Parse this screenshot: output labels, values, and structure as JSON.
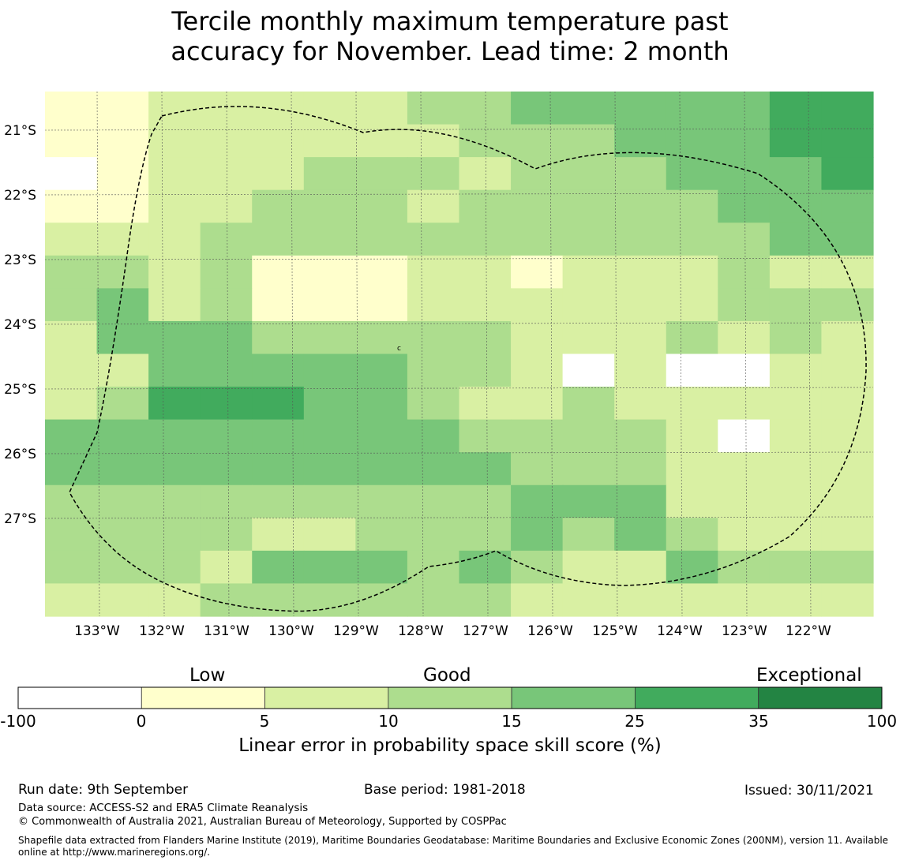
{
  "title": {
    "line1": "Tercile monthly maximum temperature past",
    "line2": "accuracy for November. Lead time: 2 month"
  },
  "map": {
    "lon_labels": [
      "133°W",
      "132°W",
      "131°W",
      "130°W",
      "129°W",
      "128°W",
      "127°W",
      "126°W",
      "125°W",
      "124°W",
      "123°W",
      "122°W"
    ],
    "lat_labels": [
      "21°S",
      "22°S",
      "23°S",
      "24°S",
      "25°S",
      "26°S",
      "27°S"
    ],
    "boundary_style": "dashed black outline (EEZ)",
    "grid_class_values": [
      "0011111223333344",
      "0011111122233344",
      "-011122212223334",
      "0011222122222333",
      "1112222222222233",
      "2212000110111211",
      "2312000111111222",
      "1333222221112121",
      "1133333221-1--11",
      "1244433211211111",
      "3333333322221-11",
      "3333333332221111",
      "2222222223331111",
      "2222112223232111",
      "2221333232113222",
      "1112222221111111"
    ],
    "grid_encoding": "one string per row north to south, one char per column west to east; '-' = class -100..0, digits 0..6 = colorbar classes from 0 upward"
  },
  "colorbar": {
    "labels": [
      "-100",
      "0",
      "5",
      "10",
      "15",
      "25",
      "35",
      "100"
    ],
    "colors": [
      "#ffffff",
      "#ffffcc",
      "#d9f0a3",
      "#addd8e",
      "#78c679",
      "#41ab5d",
      "#238443"
    ],
    "words": [
      "Low",
      "Good",
      "Exceptional"
    ],
    "axis_label": "Linear error in probability space skill score (%)"
  },
  "footer": {
    "run_date": "Run date: 9th September",
    "base_period": "Base period: 1981-2018",
    "issued": "Issued: 30/11/2021",
    "data_source": "Data source: ACCESS-S2 and ERA5 Climate Reanalysis",
    "copyright": "© Commonwealth of Australia 2021, Australian Bureau of Meteorology, Supported by COSPPac",
    "shapefile": "Shapefile data extracted from Flanders Marine Institute (2019), Maritime Boundaries Geodatabase: Maritime Boundaries and Exclusive Economic Zones (200NM), version 11. Available online at http://www.marineregions.org/."
  }
}
